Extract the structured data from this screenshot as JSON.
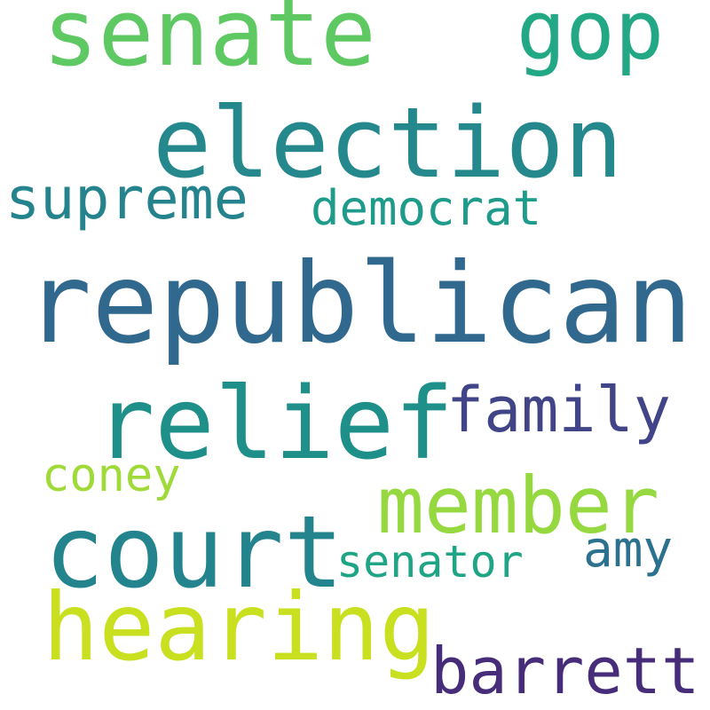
{
  "words": [
    {
      "text": "republican",
      "color": "#31688e"
    },
    {
      "text": "election",
      "color": "#24888d"
    },
    {
      "text": "court",
      "color": "#23848e"
    },
    {
      "text": "relief",
      "color": "#1f8f89"
    },
    {
      "text": "hearing",
      "color": "#c8e020"
    },
    {
      "text": "senate",
      "color": "#5ec962"
    },
    {
      "text": "member",
      "color": "#95d840"
    },
    {
      "text": "gop",
      "color": "#22a884"
    },
    {
      "text": "barrett",
      "color": "#472c7a"
    },
    {
      "text": "supreme",
      "color": "#25838e"
    },
    {
      "text": "family",
      "color": "#414487"
    },
    {
      "text": "democrat",
      "color": "#1e9b8a"
    },
    {
      "text": "senator",
      "color": "#20a486"
    },
    {
      "text": "amy",
      "color": "#2c728e"
    },
    {
      "text": "coney",
      "color": "#a0da39"
    }
  ]
}
